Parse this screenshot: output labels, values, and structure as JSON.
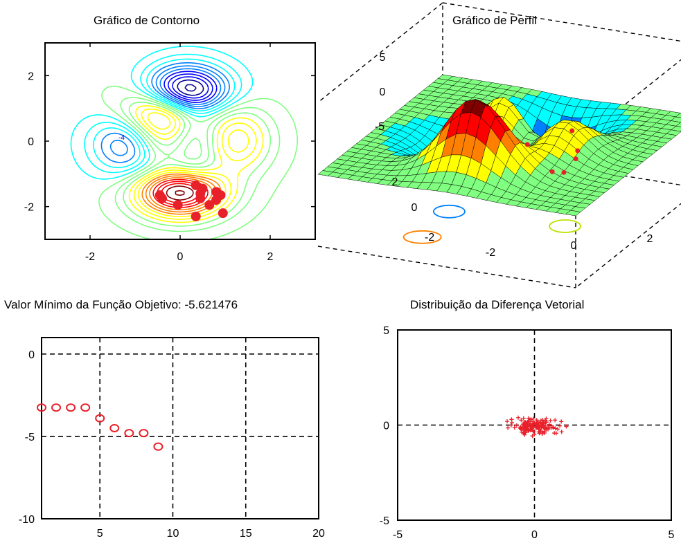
{
  "chart_data": [
    {
      "type": "contour",
      "title": "Gráfico de Contorno",
      "xlim": [
        -3,
        3
      ],
      "ylim": [
        -3,
        3
      ],
      "xticks": [
        -2,
        0,
        2
      ],
      "yticks": [
        2,
        0,
        -2
      ],
      "xtick_labels": [
        "-2",
        "0",
        "2"
      ],
      "ytick_labels": [
        "2",
        "0",
        "-2"
      ],
      "contour_inline_labels": [
        "-4"
      ],
      "points": [
        {
          "x": 0.35,
          "y": -1.35
        },
        {
          "x": 0.5,
          "y": -1.45
        },
        {
          "x": 0.45,
          "y": -1.6
        },
        {
          "x": 0.8,
          "y": -1.55
        },
        {
          "x": 0.9,
          "y": -1.65
        },
        {
          "x": -0.45,
          "y": -1.65
        },
        {
          "x": -0.4,
          "y": -1.75
        },
        {
          "x": 0.45,
          "y": -1.75
        },
        {
          "x": 0.8,
          "y": -1.8
        },
        {
          "x": 0.65,
          "y": -1.95
        },
        {
          "x": -0.05,
          "y": -1.95
        },
        {
          "x": 0.95,
          "y": -2.2
        },
        {
          "x": 0.35,
          "y": -2.3
        }
      ]
    },
    {
      "type": "surface",
      "title": "Gráfico de Perfil",
      "zticks": [
        "5",
        "0",
        "-5"
      ],
      "yticks": [
        "2",
        "0",
        "-2"
      ],
      "xticks": [
        "-2",
        "0",
        "2"
      ]
    },
    {
      "type": "scatter",
      "title": "Valor Mínimo da Função Objetivo: -5.621476",
      "xlim": [
        1,
        20
      ],
      "ylim": [
        -10,
        1
      ],
      "xticks": [
        5,
        10,
        15,
        20
      ],
      "yticks": [
        0,
        -5,
        -10
      ],
      "xtick_labels": [
        "5",
        "10",
        "15",
        "20"
      ],
      "ytick_labels": [
        "0",
        "-5",
        "-10"
      ],
      "grid": true,
      "x": [
        1,
        2,
        3,
        4,
        5,
        6,
        7,
        8,
        9
      ],
      "y": [
        -3.25,
        -3.25,
        -3.25,
        -3.25,
        -3.9,
        -4.5,
        -4.8,
        -4.8,
        -5.62
      ]
    },
    {
      "type": "scatter",
      "title": "Distribuição da Diferença Vetorial",
      "xlim": [
        -5,
        5
      ],
      "ylim": [
        -5,
        5
      ],
      "xticks": [
        -5,
        0,
        5
      ],
      "yticks": [
        5,
        0,
        -5
      ],
      "xtick_labels": [
        "-5",
        "0",
        "5"
      ],
      "ytick_labels": [
        "5",
        "0",
        "-5"
      ],
      "reference_lines": {
        "x": 0,
        "y": 0
      },
      "spread": {
        "x_min": -1.3,
        "x_max": 1.3,
        "y_min": -0.6,
        "y_max": 0.5
      },
      "n_points": 150
    }
  ],
  "colors": {
    "marker": "#e8202a",
    "axes": "#000000",
    "jet": [
      "#00008f",
      "#0000ff",
      "#0080ff",
      "#00ffff",
      "#80ff80",
      "#ffff00",
      "#ff8000",
      "#ff0000",
      "#800000"
    ]
  }
}
